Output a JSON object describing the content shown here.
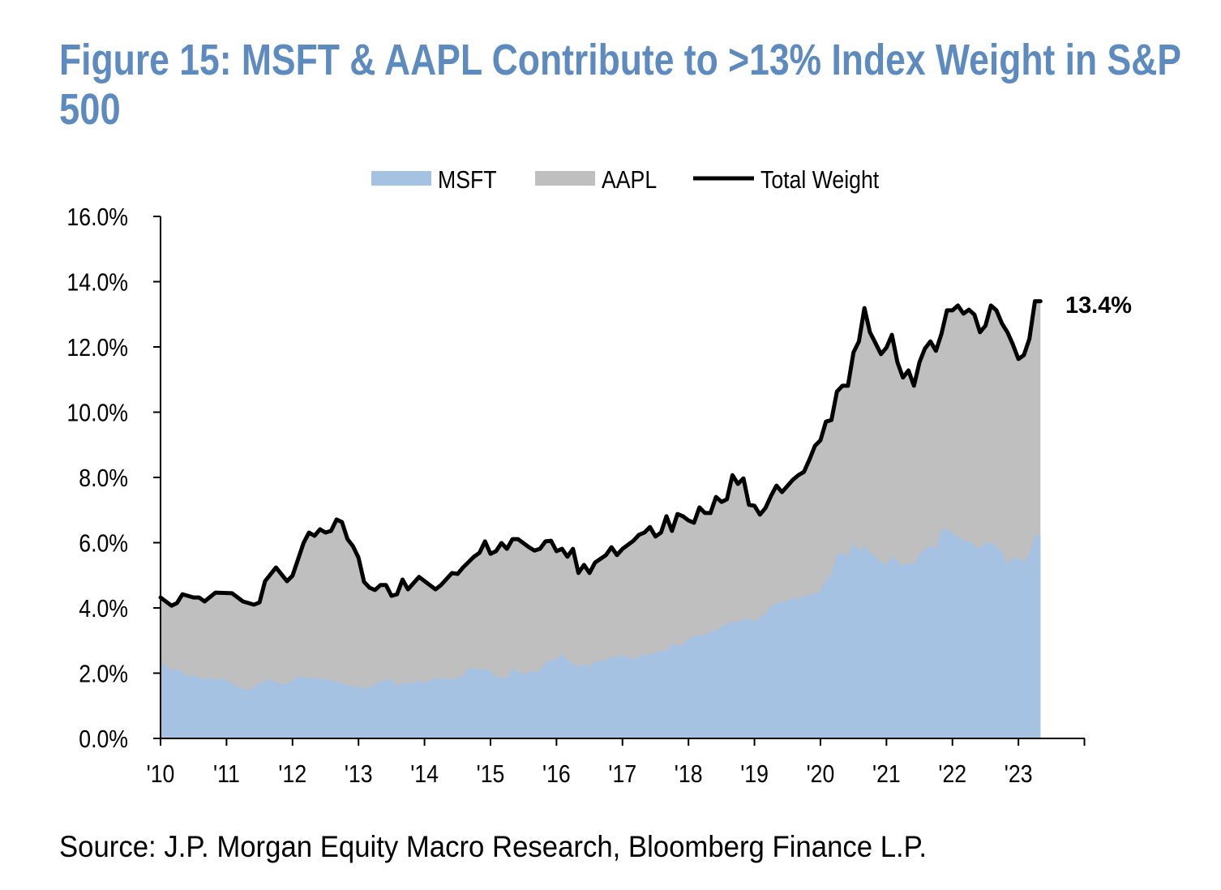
{
  "chart_data": {
    "type": "area",
    "title_line1": "Figure 15: MSFT & AAPL Contribute to >13% Index Weight in S&P",
    "title_line2": "500",
    "source": "Source: J.P. Morgan Equity Macro Research, Bloomberg Finance L.P.",
    "xlabel": "",
    "ylabel": "",
    "ylim": [
      0,
      16
    ],
    "xlim": [
      "2010-01",
      "2024-01"
    ],
    "y_ticks": [
      "0.0%",
      "2.0%",
      "4.0%",
      "6.0%",
      "8.0%",
      "10.0%",
      "12.0%",
      "14.0%",
      "16.0%"
    ],
    "x_ticks": [
      "'10",
      "'11",
      "'12",
      "'13",
      "'14",
      "'15",
      "'16",
      "'17",
      "'18",
      "'19",
      "'20",
      "'21",
      "'22",
      "'23"
    ],
    "grid": false,
    "legend_position": "top-center",
    "legend": [
      {
        "label": "MSFT",
        "kind": "area",
        "color": "#A6C2E3"
      },
      {
        "label": "AAPL",
        "kind": "area",
        "color": "#BFBFBF"
      },
      {
        "label": "Total Weight",
        "kind": "line",
        "color": "#000000"
      }
    ],
    "annotation": "13.4%",
    "title_color": "#5E8BBF",
    "series": [
      {
        "name": "Total Weight",
        "unit": "%",
        "points": [
          [
            "2010-01",
            4.32
          ],
          [
            "2010-03",
            4.07
          ],
          [
            "2010-04",
            4.15
          ],
          [
            "2010-05",
            4.42
          ],
          [
            "2010-07",
            4.32
          ],
          [
            "2010-08",
            4.32
          ],
          [
            "2010-09",
            4.2
          ],
          [
            "2010-11",
            4.47
          ],
          [
            "2011-02",
            4.45
          ],
          [
            "2011-04",
            4.2
          ],
          [
            "2011-06",
            4.1
          ],
          [
            "2011-07",
            4.17
          ],
          [
            "2011-08",
            4.82
          ],
          [
            "2011-10",
            5.24
          ],
          [
            "2011-12",
            4.82
          ],
          [
            "2012-01",
            4.99
          ],
          [
            "2012-03",
            5.99
          ],
          [
            "2012-04",
            6.31
          ],
          [
            "2012-05",
            6.21
          ],
          [
            "2012-06",
            6.41
          ],
          [
            "2012-07",
            6.31
          ],
          [
            "2012-08",
            6.36
          ],
          [
            "2012-09",
            6.71
          ],
          [
            "2012-10",
            6.63
          ],
          [
            "2012-11",
            6.11
          ],
          [
            "2012-12",
            5.89
          ],
          [
            "2013-01",
            5.54
          ],
          [
            "2013-02",
            4.8
          ],
          [
            "2013-03",
            4.62
          ],
          [
            "2013-04",
            4.55
          ],
          [
            "2013-05",
            4.7
          ],
          [
            "2013-06",
            4.7
          ],
          [
            "2013-07",
            4.37
          ],
          [
            "2013-08",
            4.42
          ],
          [
            "2013-09",
            4.87
          ],
          [
            "2013-10",
            4.57
          ],
          [
            "2013-12",
            4.95
          ],
          [
            "2014-03",
            4.57
          ],
          [
            "2014-04",
            4.7
          ],
          [
            "2014-06",
            5.07
          ],
          [
            "2014-07",
            5.04
          ],
          [
            "2014-08",
            5.24
          ],
          [
            "2014-10",
            5.57
          ],
          [
            "2014-11",
            5.69
          ],
          [
            "2014-12",
            6.04
          ],
          [
            "2015-01",
            5.66
          ],
          [
            "2015-02",
            5.74
          ],
          [
            "2015-03",
            5.99
          ],
          [
            "2015-04",
            5.81
          ],
          [
            "2015-05",
            6.11
          ],
          [
            "2015-06",
            6.11
          ],
          [
            "2015-08",
            5.86
          ],
          [
            "2015-09",
            5.76
          ],
          [
            "2015-10",
            5.81
          ],
          [
            "2015-11",
            6.04
          ],
          [
            "2015-12",
            6.06
          ],
          [
            "2016-01",
            5.74
          ],
          [
            "2016-02",
            5.81
          ],
          [
            "2016-03",
            5.57
          ],
          [
            "2016-04",
            5.81
          ],
          [
            "2016-05",
            5.07
          ],
          [
            "2016-06",
            5.32
          ],
          [
            "2016-07",
            5.07
          ],
          [
            "2016-08",
            5.39
          ],
          [
            "2016-10",
            5.62
          ],
          [
            "2016-11",
            5.86
          ],
          [
            "2016-12",
            5.62
          ],
          [
            "2017-01",
            5.81
          ],
          [
            "2017-03",
            6.06
          ],
          [
            "2017-04",
            6.24
          ],
          [
            "2017-05",
            6.31
          ],
          [
            "2017-06",
            6.48
          ],
          [
            "2017-07",
            6.19
          ],
          [
            "2017-08",
            6.31
          ],
          [
            "2017-09",
            6.81
          ],
          [
            "2017-10",
            6.36
          ],
          [
            "2017-11",
            6.88
          ],
          [
            "2017-12",
            6.81
          ],
          [
            "2018-01",
            6.68
          ],
          [
            "2018-02",
            6.61
          ],
          [
            "2018-03",
            7.08
          ],
          [
            "2018-04",
            6.91
          ],
          [
            "2018-05",
            6.91
          ],
          [
            "2018-06",
            7.4
          ],
          [
            "2018-07",
            7.25
          ],
          [
            "2018-08",
            7.33
          ],
          [
            "2018-09",
            8.07
          ],
          [
            "2018-10",
            7.8
          ],
          [
            "2018-11",
            7.97
          ],
          [
            "2018-12",
            7.16
          ],
          [
            "2019-01",
            7.13
          ],
          [
            "2019-02",
            6.86
          ],
          [
            "2019-03",
            7.06
          ],
          [
            "2019-04",
            7.43
          ],
          [
            "2019-05",
            7.75
          ],
          [
            "2019-06",
            7.55
          ],
          [
            "2019-08",
            7.93
          ],
          [
            "2019-09",
            8.07
          ],
          [
            "2019-10",
            8.17
          ],
          [
            "2019-11",
            8.55
          ],
          [
            "2019-12",
            8.97
          ],
          [
            "2020-01",
            9.14
          ],
          [
            "2020-02",
            9.71
          ],
          [
            "2020-03",
            9.76
          ],
          [
            "2020-04",
            10.63
          ],
          [
            "2020-05",
            10.81
          ],
          [
            "2020-06",
            10.81
          ],
          [
            "2020-07",
            11.83
          ],
          [
            "2020-08",
            12.17
          ],
          [
            "2020-09",
            13.19
          ],
          [
            "2020-10",
            12.45
          ],
          [
            "2020-11",
            12.12
          ],
          [
            "2020-12",
            11.78
          ],
          [
            "2021-01",
            11.98
          ],
          [
            "2021-02",
            12.37
          ],
          [
            "2021-03",
            11.53
          ],
          [
            "2021-04",
            11.06
          ],
          [
            "2021-05",
            11.28
          ],
          [
            "2021-06",
            10.81
          ],
          [
            "2021-07",
            11.53
          ],
          [
            "2021-08",
            11.95
          ],
          [
            "2021-09",
            12.17
          ],
          [
            "2021-10",
            11.88
          ],
          [
            "2021-11",
            12.4
          ],
          [
            "2021-12",
            13.12
          ],
          [
            "2022-01",
            13.12
          ],
          [
            "2022-02",
            13.27
          ],
          [
            "2022-03",
            13.02
          ],
          [
            "2022-04",
            13.14
          ],
          [
            "2022-05",
            12.99
          ],
          [
            "2022-06",
            12.45
          ],
          [
            "2022-07",
            12.65
          ],
          [
            "2022-08",
            13.27
          ],
          [
            "2022-09",
            13.12
          ],
          [
            "2022-10",
            12.72
          ],
          [
            "2022-11",
            12.45
          ],
          [
            "2022-12",
            12.07
          ],
          [
            "2023-01",
            11.63
          ],
          [
            "2023-02",
            11.75
          ],
          [
            "2023-03",
            12.25
          ],
          [
            "2023-04",
            13.4
          ],
          [
            "2023-05",
            13.4
          ]
        ]
      },
      {
        "name": "MSFT",
        "unit": "%",
        "points": [
          [
            "2010-01",
            2.34
          ],
          [
            "2010-02",
            2.21
          ],
          [
            "2010-03",
            2.09
          ],
          [
            "2010-04",
            2.14
          ],
          [
            "2010-05",
            1.99
          ],
          [
            "2010-06",
            1.89
          ],
          [
            "2010-07",
            1.94
          ],
          [
            "2010-09",
            1.81
          ],
          [
            "2010-10",
            1.86
          ],
          [
            "2010-11",
            1.79
          ],
          [
            "2010-12",
            1.84
          ],
          [
            "2011-01",
            1.79
          ],
          [
            "2011-03",
            1.57
          ],
          [
            "2011-05",
            1.47
          ],
          [
            "2011-07",
            1.69
          ],
          [
            "2011-09",
            1.81
          ],
          [
            "2011-11",
            1.66
          ],
          [
            "2011-12",
            1.69
          ],
          [
            "2012-02",
            1.89
          ],
          [
            "2012-04",
            1.86
          ],
          [
            "2012-06",
            1.84
          ],
          [
            "2012-08",
            1.79
          ],
          [
            "2012-10",
            1.69
          ],
          [
            "2012-12",
            1.59
          ],
          [
            "2013-03",
            1.54
          ],
          [
            "2013-05",
            1.76
          ],
          [
            "2013-07",
            1.79
          ],
          [
            "2013-08",
            1.59
          ],
          [
            "2013-09",
            1.69
          ],
          [
            "2013-11",
            1.69
          ],
          [
            "2013-12",
            1.79
          ],
          [
            "2014-01",
            1.69
          ],
          [
            "2014-03",
            1.84
          ],
          [
            "2014-06",
            1.81
          ],
          [
            "2014-08",
            1.91
          ],
          [
            "2014-09",
            2.16
          ],
          [
            "2015-01",
            2.09
          ],
          [
            "2015-02",
            1.89
          ],
          [
            "2015-04",
            1.84
          ],
          [
            "2015-05",
            2.14
          ],
          [
            "2015-07",
            1.96
          ],
          [
            "2015-08",
            2.04
          ],
          [
            "2015-10",
            2.09
          ],
          [
            "2015-11",
            2.31
          ],
          [
            "2016-01",
            2.46
          ],
          [
            "2016-02",
            2.58
          ],
          [
            "2016-03",
            2.39
          ],
          [
            "2016-05",
            2.19
          ],
          [
            "2016-06",
            2.29
          ],
          [
            "2016-07",
            2.19
          ],
          [
            "2016-08",
            2.36
          ],
          [
            "2016-10",
            2.39
          ],
          [
            "2016-11",
            2.53
          ],
          [
            "2016-12",
            2.46
          ],
          [
            "2017-01",
            2.56
          ],
          [
            "2017-03",
            2.43
          ],
          [
            "2017-05",
            2.58
          ],
          [
            "2017-06",
            2.58
          ],
          [
            "2017-08",
            2.68
          ],
          [
            "2017-09",
            2.68
          ],
          [
            "2017-10",
            2.88
          ],
          [
            "2017-12",
            2.86
          ],
          [
            "2018-01",
            3.06
          ],
          [
            "2018-02",
            3.13
          ],
          [
            "2018-04",
            3.18
          ],
          [
            "2018-05",
            3.28
          ],
          [
            "2018-06",
            3.3
          ],
          [
            "2018-07",
            3.43
          ],
          [
            "2018-09",
            3.58
          ],
          [
            "2018-10",
            3.58
          ],
          [
            "2018-12",
            3.7
          ],
          [
            "2019-01",
            3.58
          ],
          [
            "2019-03",
            3.83
          ],
          [
            "2019-04",
            4.07
          ],
          [
            "2019-06",
            4.2
          ],
          [
            "2019-07",
            4.2
          ],
          [
            "2019-08",
            4.32
          ],
          [
            "2019-09",
            4.3
          ],
          [
            "2019-12",
            4.45
          ],
          [
            "2020-01",
            4.52
          ],
          [
            "2020-02",
            4.87
          ],
          [
            "2020-03",
            5.04
          ],
          [
            "2020-04",
            5.61
          ],
          [
            "2020-05",
            5.69
          ],
          [
            "2020-06",
            5.57
          ],
          [
            "2020-07",
            5.99
          ],
          [
            "2020-08",
            5.76
          ],
          [
            "2020-09",
            5.89
          ],
          [
            "2020-10",
            5.69
          ],
          [
            "2020-12",
            5.42
          ],
          [
            "2021-01",
            5.32
          ],
          [
            "2021-02",
            5.59
          ],
          [
            "2021-04",
            5.29
          ],
          [
            "2021-05",
            5.39
          ],
          [
            "2021-06",
            5.32
          ],
          [
            "2021-07",
            5.66
          ],
          [
            "2021-09",
            5.91
          ],
          [
            "2021-10",
            5.81
          ],
          [
            "2021-11",
            6.39
          ],
          [
            "2021-12",
            6.41
          ],
          [
            "2022-02",
            6.19
          ],
          [
            "2022-03",
            6.06
          ],
          [
            "2022-04",
            6.04
          ],
          [
            "2022-06",
            5.81
          ],
          [
            "2022-07",
            6.01
          ],
          [
            "2022-08",
            6.01
          ],
          [
            "2022-10",
            5.74
          ],
          [
            "2022-11",
            5.32
          ],
          [
            "2022-12",
            5.54
          ],
          [
            "2023-01",
            5.52
          ],
          [
            "2023-02",
            5.44
          ],
          [
            "2023-03",
            5.66
          ],
          [
            "2023-04",
            6.26
          ],
          [
            "2023-05",
            6.19
          ]
        ]
      }
    ]
  }
}
